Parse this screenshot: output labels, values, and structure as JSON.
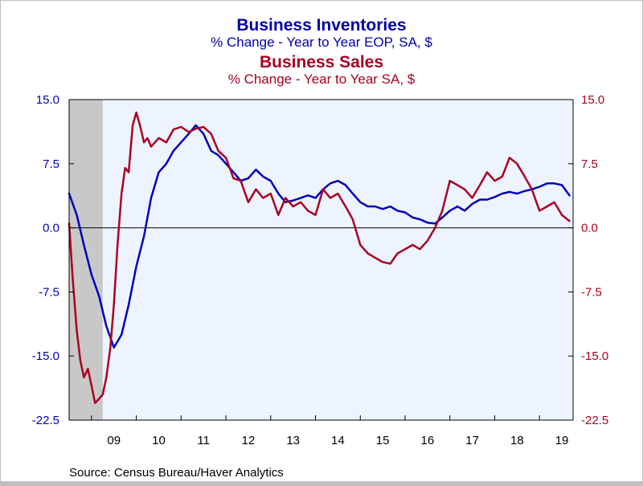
{
  "chart_data": {
    "type": "line",
    "titles": [
      {
        "text": "Business Inventories",
        "color": "#0000aa",
        "bold": true
      },
      {
        "text": "% Change - Year to Year     EOP, SA, $",
        "color": "#0000aa",
        "bold": false
      },
      {
        "text": "Business Sales",
        "color": "#aa0022",
        "bold": true
      },
      {
        "text": "% Change - Year to Year     SA, $",
        "color": "#aa0022",
        "bold": false
      }
    ],
    "source": "Source:  Census Bureau/Haver Analytics",
    "ylim": [
      -22.5,
      15.0
    ],
    "yticks": [
      15.0,
      7.5,
      0.0,
      -7.5,
      -15.0,
      -22.5
    ],
    "yticks_left_labels": [
      "15.0",
      "7.5",
      "0.0",
      "-7.5",
      "-15.0",
      "-22.5"
    ],
    "yticks_right_labels": [
      "15.0",
      "7.5",
      "0.0",
      "-7.5",
      "-15.0",
      "-22.5"
    ],
    "xlim": [
      2008.5,
      2019.75
    ],
    "xtick_labels": [
      {
        "label": "09",
        "x": 2009.5
      },
      {
        "label": "10",
        "x": 2010.5
      },
      {
        "label": "11",
        "x": 2011.5
      },
      {
        "label": "12",
        "x": 2012.5
      },
      {
        "label": "13",
        "x": 2013.5
      },
      {
        "label": "14",
        "x": 2014.5
      },
      {
        "label": "15",
        "x": 2015.5
      },
      {
        "label": "16",
        "x": 2016.5
      },
      {
        "label": "17",
        "x": 2017.5
      },
      {
        "label": "18",
        "x": 2018.5
      },
      {
        "label": "19",
        "x": 2019.5
      }
    ],
    "recession": {
      "start": 2008.5,
      "end": 2009.25
    },
    "colors": {
      "plot_bg": "#eef4ff",
      "recession": "#c8c8c8",
      "inventories": "#0000bb",
      "sales": "#aa0022",
      "zero_line": "#000000"
    },
    "series": [
      {
        "key": "inventories",
        "color": "#0000bb",
        "points": [
          [
            2008.5,
            4.0
          ],
          [
            2008.67,
            1.5
          ],
          [
            2008.83,
            -2.0
          ],
          [
            2009.0,
            -5.5
          ],
          [
            2009.17,
            -8.0
          ],
          [
            2009.33,
            -11.5
          ],
          [
            2009.5,
            -14.0
          ],
          [
            2009.67,
            -12.5
          ],
          [
            2009.83,
            -9.0
          ],
          [
            2010.0,
            -4.5
          ],
          [
            2010.17,
            -1.0
          ],
          [
            2010.33,
            3.5
          ],
          [
            2010.5,
            6.5
          ],
          [
            2010.67,
            7.5
          ],
          [
            2010.83,
            9.0
          ],
          [
            2011.0,
            10.0
          ],
          [
            2011.17,
            11.0
          ],
          [
            2011.33,
            12.0
          ],
          [
            2011.5,
            11.0
          ],
          [
            2011.67,
            9.0
          ],
          [
            2011.83,
            8.5
          ],
          [
            2012.0,
            7.5
          ],
          [
            2012.17,
            6.5
          ],
          [
            2012.33,
            5.5
          ],
          [
            2012.5,
            5.8
          ],
          [
            2012.67,
            6.8
          ],
          [
            2012.83,
            6.0
          ],
          [
            2013.0,
            5.5
          ],
          [
            2013.17,
            4.0
          ],
          [
            2013.33,
            3.0
          ],
          [
            2013.5,
            3.2
          ],
          [
            2013.67,
            3.5
          ],
          [
            2013.83,
            3.8
          ],
          [
            2014.0,
            3.5
          ],
          [
            2014.17,
            4.5
          ],
          [
            2014.33,
            5.2
          ],
          [
            2014.5,
            5.5
          ],
          [
            2014.67,
            5.0
          ],
          [
            2014.83,
            4.0
          ],
          [
            2015.0,
            3.0
          ],
          [
            2015.17,
            2.5
          ],
          [
            2015.33,
            2.5
          ],
          [
            2015.5,
            2.2
          ],
          [
            2015.67,
            2.5
          ],
          [
            2015.83,
            2.0
          ],
          [
            2016.0,
            1.8
          ],
          [
            2016.17,
            1.2
          ],
          [
            2016.33,
            1.0
          ],
          [
            2016.5,
            0.6
          ],
          [
            2016.67,
            0.5
          ],
          [
            2016.83,
            1.2
          ],
          [
            2017.0,
            2.0
          ],
          [
            2017.17,
            2.5
          ],
          [
            2017.33,
            2.0
          ],
          [
            2017.5,
            2.8
          ],
          [
            2017.67,
            3.3
          ],
          [
            2017.83,
            3.3
          ],
          [
            2018.0,
            3.6
          ],
          [
            2018.17,
            4.0
          ],
          [
            2018.33,
            4.2
          ],
          [
            2018.5,
            4.0
          ],
          [
            2018.67,
            4.3
          ],
          [
            2018.83,
            4.5
          ],
          [
            2019.0,
            4.8
          ],
          [
            2019.17,
            5.2
          ],
          [
            2019.33,
            5.2
          ],
          [
            2019.5,
            5.0
          ],
          [
            2019.67,
            3.8
          ]
        ]
      },
      {
        "key": "sales",
        "color": "#aa0022",
        "points": [
          [
            2008.5,
            0.5
          ],
          [
            2008.58,
            -6.0
          ],
          [
            2008.67,
            -12.0
          ],
          [
            2008.75,
            -15.5
          ],
          [
            2008.83,
            -17.5
          ],
          [
            2008.92,
            -16.5
          ],
          [
            2009.0,
            -18.5
          ],
          [
            2009.08,
            -20.5
          ],
          [
            2009.17,
            -20.0
          ],
          [
            2009.25,
            -19.5
          ],
          [
            2009.33,
            -17.5
          ],
          [
            2009.42,
            -14.0
          ],
          [
            2009.5,
            -9.0
          ],
          [
            2009.58,
            -2.0
          ],
          [
            2009.67,
            4.0
          ],
          [
            2009.75,
            7.0
          ],
          [
            2009.83,
            6.5
          ],
          [
            2009.92,
            12.0
          ],
          [
            2010.0,
            13.5
          ],
          [
            2010.08,
            12.0
          ],
          [
            2010.17,
            10.0
          ],
          [
            2010.25,
            10.5
          ],
          [
            2010.33,
            9.5
          ],
          [
            2010.5,
            10.5
          ],
          [
            2010.67,
            10.0
          ],
          [
            2010.83,
            11.5
          ],
          [
            2011.0,
            11.8
          ],
          [
            2011.17,
            11.2
          ],
          [
            2011.33,
            11.6
          ],
          [
            2011.5,
            11.8
          ],
          [
            2011.67,
            11.0
          ],
          [
            2011.83,
            9.0
          ],
          [
            2012.0,
            8.2
          ],
          [
            2012.17,
            5.8
          ],
          [
            2012.33,
            5.5
          ],
          [
            2012.5,
            3.0
          ],
          [
            2012.67,
            4.5
          ],
          [
            2012.83,
            3.5
          ],
          [
            2013.0,
            4.0
          ],
          [
            2013.17,
            1.5
          ],
          [
            2013.33,
            3.5
          ],
          [
            2013.5,
            2.5
          ],
          [
            2013.67,
            3.0
          ],
          [
            2013.83,
            2.0
          ],
          [
            2014.0,
            1.5
          ],
          [
            2014.17,
            4.5
          ],
          [
            2014.33,
            3.5
          ],
          [
            2014.5,
            4.0
          ],
          [
            2014.67,
            2.5
          ],
          [
            2014.83,
            1.0
          ],
          [
            2015.0,
            -2.0
          ],
          [
            2015.17,
            -3.0
          ],
          [
            2015.33,
            -3.5
          ],
          [
            2015.5,
            -4.0
          ],
          [
            2015.67,
            -4.2
          ],
          [
            2015.83,
            -3.0
          ],
          [
            2016.0,
            -2.5
          ],
          [
            2016.17,
            -2.0
          ],
          [
            2016.33,
            -2.5
          ],
          [
            2016.5,
            -1.5
          ],
          [
            2016.67,
            0.0
          ],
          [
            2016.83,
            2.0
          ],
          [
            2017.0,
            5.5
          ],
          [
            2017.17,
            5.0
          ],
          [
            2017.33,
            4.5
          ],
          [
            2017.5,
            3.5
          ],
          [
            2017.67,
            5.0
          ],
          [
            2017.83,
            6.5
          ],
          [
            2018.0,
            5.5
          ],
          [
            2018.17,
            6.0
          ],
          [
            2018.33,
            8.2
          ],
          [
            2018.5,
            7.5
          ],
          [
            2018.67,
            6.0
          ],
          [
            2018.83,
            4.5
          ],
          [
            2019.0,
            2.0
          ],
          [
            2019.17,
            2.5
          ],
          [
            2019.33,
            3.0
          ],
          [
            2019.5,
            1.5
          ],
          [
            2019.67,
            0.8
          ]
        ]
      }
    ]
  }
}
